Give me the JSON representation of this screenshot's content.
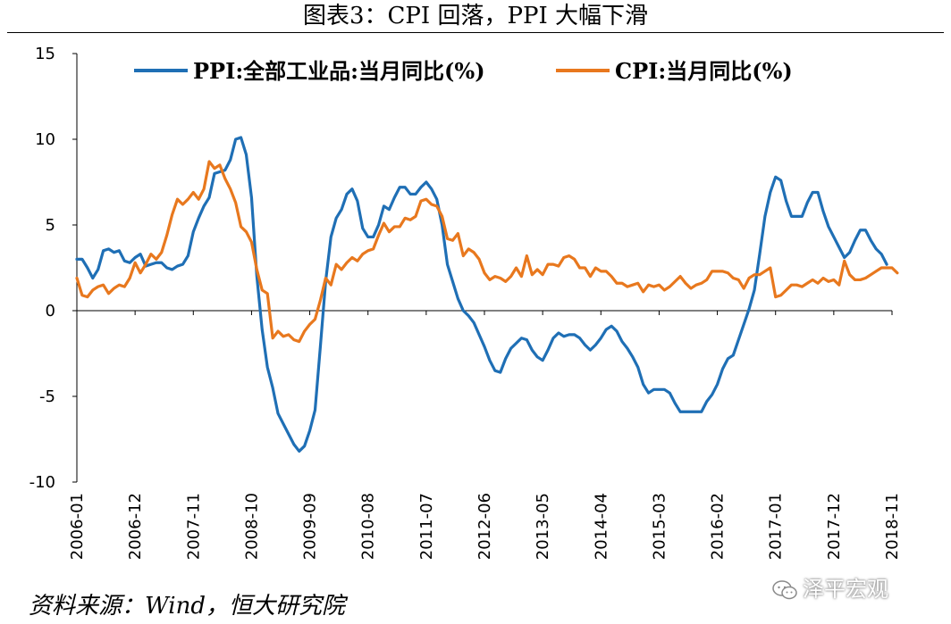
{
  "chart_data": {
    "type": "line",
    "title": "图表3：CPI 回落，PPI 大幅下滑",
    "xlabel": "",
    "ylabel": "",
    "ylim": [
      -10,
      15
    ],
    "yticks": [
      15,
      10,
      5,
      0,
      -5,
      -10
    ],
    "xticks": [
      "2006-01",
      "2006-12",
      "2007-11",
      "2008-10",
      "2009-09",
      "2010-08",
      "2011-07",
      "2012-06",
      "2013-05",
      "2014-04",
      "2015-03",
      "2016-02",
      "2017-01",
      "2017-12",
      "2018-11"
    ],
    "x_start": "2006-01",
    "x_end": "2018-11",
    "legend_position": "top",
    "grid": false,
    "series": [
      {
        "name": "PPI:全部工业品:当月同比(%)",
        "color": "#1f6fb5",
        "values": [
          3.0,
          3.0,
          2.5,
          1.9,
          2.4,
          3.5,
          3.6,
          3.4,
          3.5,
          2.9,
          2.8,
          3.1,
          3.3,
          2.6,
          2.7,
          2.8,
          2.8,
          2.5,
          2.4,
          2.6,
          2.7,
          3.2,
          4.6,
          5.4,
          6.1,
          6.6,
          8.0,
          8.1,
          8.2,
          8.8,
          10.0,
          10.1,
          9.1,
          6.6,
          2.0,
          -1.1,
          -3.3,
          -4.5,
          -6.0,
          -6.6,
          -7.2,
          -7.8,
          -8.2,
          -7.9,
          -7.0,
          -5.8,
          -2.1,
          1.7,
          4.3,
          5.4,
          5.9,
          6.8,
          7.1,
          6.4,
          4.8,
          4.3,
          4.3,
          5.0,
          6.1,
          5.9,
          6.6,
          7.2,
          7.2,
          6.8,
          6.8,
          7.2,
          7.5,
          7.1,
          6.5,
          5.0,
          2.7,
          1.7,
          0.7,
          0.0,
          -0.3,
          -0.7,
          -1.4,
          -2.1,
          -2.9,
          -3.5,
          -3.6,
          -2.8,
          -2.2,
          -1.9,
          -1.6,
          -1.7,
          -2.3,
          -2.7,
          -2.9,
          -2.3,
          -1.6,
          -1.3,
          -1.5,
          -1.4,
          -1.4,
          -1.6,
          -2.0,
          -2.3,
          -2.0,
          -1.6,
          -1.1,
          -0.9,
          -1.2,
          -1.8,
          -2.2,
          -2.7,
          -3.3,
          -4.3,
          -4.8,
          -4.6,
          -4.6,
          -4.6,
          -4.8,
          -5.4,
          -5.9,
          -5.9,
          -5.9,
          -5.9,
          -5.9,
          -5.3,
          -4.9,
          -4.3,
          -3.4,
          -2.8,
          -2.6,
          -1.7,
          -0.8,
          0.1,
          1.2,
          3.3,
          5.5,
          6.9,
          7.8,
          7.6,
          6.4,
          5.5,
          5.5,
          5.5,
          6.3,
          6.9,
          6.9,
          5.8,
          4.9,
          4.3,
          3.7,
          3.1,
          3.4,
          4.1,
          4.7,
          4.7,
          4.1,
          3.6,
          3.3,
          2.7
        ]
      },
      {
        "name": "CPI:当月同比(%)",
        "color": "#e8781e",
        "values": [
          1.9,
          0.9,
          0.8,
          1.2,
          1.4,
          1.5,
          1.0,
          1.3,
          1.5,
          1.4,
          1.9,
          2.8,
          2.2,
          2.7,
          3.3,
          3.0,
          3.4,
          4.4,
          5.6,
          6.5,
          6.2,
          6.5,
          6.9,
          6.5,
          7.1,
          8.7,
          8.3,
          8.5,
          7.7,
          7.1,
          6.3,
          4.9,
          4.6,
          4.0,
          2.4,
          1.2,
          1.0,
          -1.6,
          -1.2,
          -1.5,
          -1.4,
          -1.7,
          -1.8,
          -1.2,
          -0.8,
          -0.5,
          0.6,
          1.9,
          1.5,
          2.7,
          2.4,
          2.8,
          3.1,
          2.9,
          3.3,
          3.5,
          3.6,
          4.4,
          5.1,
          4.6,
          4.9,
          4.9,
          5.4,
          5.3,
          5.5,
          6.4,
          6.5,
          6.2,
          6.1,
          5.5,
          4.2,
          4.1,
          4.5,
          3.2,
          3.6,
          3.4,
          3.0,
          2.2,
          1.8,
          2.0,
          1.9,
          1.7,
          2.0,
          2.5,
          2.0,
          3.2,
          2.1,
          2.4,
          2.1,
          2.7,
          2.7,
          2.6,
          3.1,
          3.2,
          3.0,
          2.5,
          2.5,
          2.0,
          2.5,
          2.3,
          2.3,
          2.0,
          1.6,
          1.6,
          1.4,
          1.5,
          1.6,
          1.1,
          1.5,
          1.4,
          1.5,
          1.2,
          1.4,
          1.7,
          2.0,
          1.6,
          1.3,
          1.5,
          1.6,
          1.8,
          2.3,
          2.3,
          2.3,
          2.2,
          1.9,
          1.8,
          1.3,
          1.9,
          2.1,
          2.1,
          2.3,
          2.5,
          0.8,
          0.9,
          1.2,
          1.5,
          1.5,
          1.4,
          1.6,
          1.8,
          1.6,
          1.9,
          1.7,
          1.8,
          1.5,
          2.9,
          2.1,
          1.8,
          1.8,
          1.9,
          2.1,
          2.3,
          2.5,
          2.5,
          2.5,
          2.2
        ]
      }
    ],
    "source": "资料来源：Wind，恒大研究院"
  },
  "watermark": {
    "text": "泽平宏观"
  }
}
